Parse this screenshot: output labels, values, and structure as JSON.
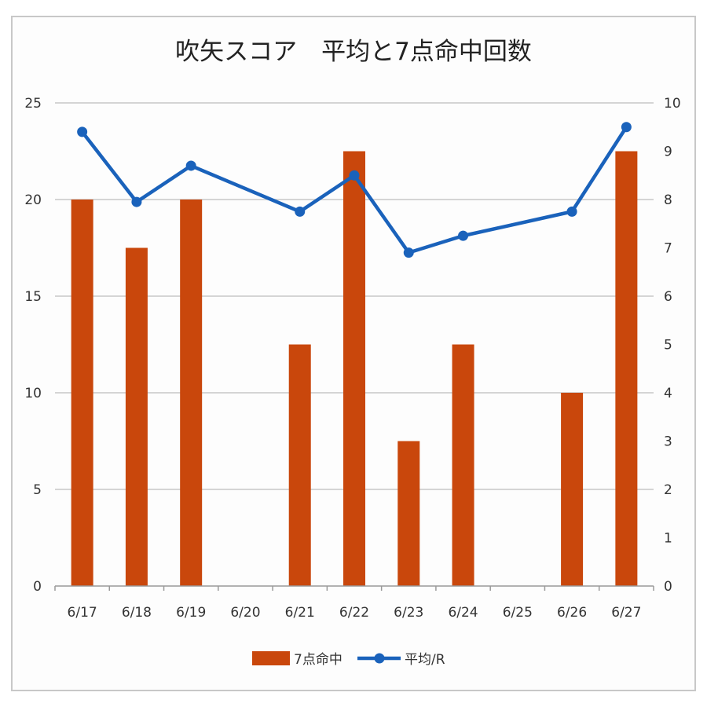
{
  "chart_data": {
    "type": "bar",
    "title": "吹矢スコア　平均と7点命中回数",
    "categories": [
      "6/17",
      "6/18",
      "6/19",
      "6/20",
      "6/21",
      "6/22",
      "6/23",
      "6/24",
      "6/25",
      "6/26",
      "6/27"
    ],
    "series": [
      {
        "name": "7点命中",
        "type": "bar",
        "axis": "left",
        "color": "#c9470c",
        "values": [
          20,
          17.5,
          20,
          null,
          12.5,
          22.5,
          7.5,
          12.5,
          null,
          10,
          22.5
        ]
      },
      {
        "name": "平均/R",
        "type": "line",
        "axis": "right",
        "color": "#1a62bb",
        "values": [
          9.4,
          7.95,
          8.7,
          null,
          7.75,
          8.5,
          6.9,
          7.25,
          null,
          7.75,
          9.5
        ]
      }
    ],
    "y_left": {
      "ylim": [
        0,
        25
      ],
      "ticks": [
        "0",
        "5",
        "10",
        "15",
        "20",
        "25"
      ]
    },
    "y_right": {
      "ylim": [
        0,
        10
      ],
      "ticks": [
        "0",
        "1",
        "2",
        "3",
        "4",
        "5",
        "6",
        "7",
        "8",
        "9",
        "10"
      ]
    },
    "grid": true,
    "legend": "bottom"
  }
}
